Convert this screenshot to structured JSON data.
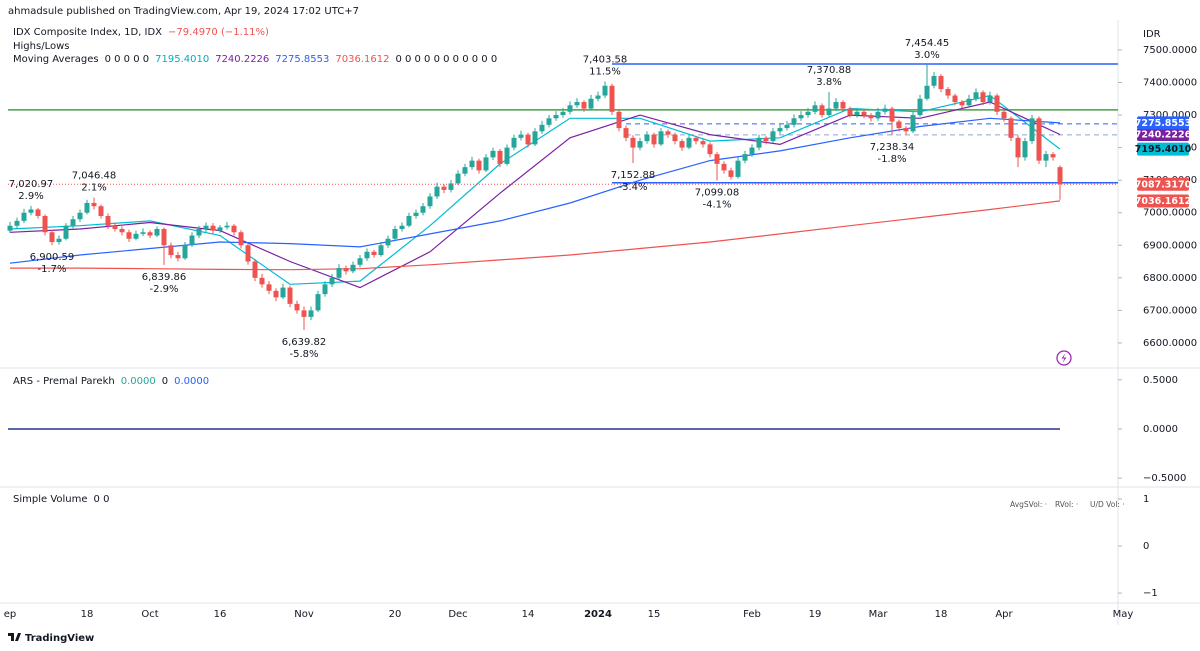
{
  "header": {
    "publisher": "ahmadsule published on TradingView.com, Apr 19, 2024 17:02 UTC+7",
    "symbol": "IDX Composite Index, 1D, IDX",
    "change": "−79.4970 (−1.11%)",
    "highs_lows": "Highs/Lows",
    "ma_title": "Moving Averages",
    "ma_zeros_before": "0 0 0 0 0",
    "ma_zeros_after": "0 0 0 0 0 0 0 0 0 0 0"
  },
  "chart_data": {
    "type": "candlestick",
    "currency": "IDR",
    "ylim": [
      6523,
      7592
    ],
    "yticks": [
      {
        "value": 7500,
        "label": "7500.0000"
      },
      {
        "value": 7400,
        "label": "7400.0000"
      },
      {
        "value": 7300,
        "label": "7300.0000"
      },
      {
        "value": 7200,
        "label": "7200.0000"
      },
      {
        "value": 7100,
        "label": "7100.0000"
      },
      {
        "value": 7000,
        "label": "7000.0000"
      },
      {
        "value": 6900,
        "label": "6900.0000"
      },
      {
        "value": 6800,
        "label": "6800.0000"
      },
      {
        "value": 6700,
        "label": "6700.0000"
      },
      {
        "value": 6600,
        "label": "6600.0000"
      }
    ],
    "up_color": "#26a69a",
    "down_color": "#ef5350",
    "candles": [
      [
        6945,
        6972,
        6938,
        6960
      ],
      [
        6960,
        6985,
        6950,
        6975
      ],
      [
        6975,
        7012,
        6968,
        7000
      ],
      [
        7000,
        7020.97,
        6992,
        7010
      ],
      [
        7010,
        7015,
        6982,
        6990
      ],
      [
        6990,
        6995,
        6930,
        6940
      ],
      [
        6940,
        6948,
        6900.59,
        6910
      ],
      [
        6910,
        6930,
        6902,
        6920
      ],
      [
        6920,
        6968,
        6915,
        6960
      ],
      [
        6960,
        6990,
        6952,
        6980
      ],
      [
        6980,
        7010,
        6972,
        7000
      ],
      [
        7000,
        7040,
        6995,
        7030
      ],
      [
        7030,
        7046.48,
        7010,
        7020
      ],
      [
        7020,
        7025,
        6982,
        6990
      ],
      [
        6990,
        6998,
        6950,
        6960
      ],
      [
        6960,
        6970,
        6942,
        6950
      ],
      [
        6950,
        6958,
        6930,
        6940
      ],
      [
        6940,
        6948,
        6910,
        6920
      ],
      [
        6920,
        6945,
        6915,
        6935
      ],
      [
        6935,
        6952,
        6928,
        6940
      ],
      [
        6940,
        6946,
        6922,
        6930
      ],
      [
        6930,
        6958,
        6925,
        6950
      ],
      [
        6950,
        6955,
        6839.86,
        6900
      ],
      [
        6900,
        6908,
        6860,
        6870
      ],
      [
        6870,
        6880,
        6850,
        6860
      ],
      [
        6860,
        6910,
        6855,
        6900
      ],
      [
        6900,
        6940,
        6895,
        6930
      ],
      [
        6930,
        6960,
        6922,
        6950
      ],
      [
        6950,
        6970,
        6940,
        6960
      ],
      [
        6960,
        6968,
        6935,
        6945
      ],
      [
        6945,
        6962,
        6938,
        6955
      ],
      [
        6955,
        6972,
        6948,
        6960
      ],
      [
        6960,
        6965,
        6930,
        6940
      ],
      [
        6940,
        6946,
        6890,
        6900
      ],
      [
        6900,
        6905,
        6840,
        6850
      ],
      [
        6850,
        6858,
        6790,
        6800
      ],
      [
        6800,
        6812,
        6770,
        6780
      ],
      [
        6780,
        6790,
        6750,
        6760
      ],
      [
        6760,
        6768,
        6728,
        6740
      ],
      [
        6740,
        6782,
        6735,
        6770
      ],
      [
        6770,
        6776,
        6710,
        6720
      ],
      [
        6720,
        6730,
        6690,
        6700
      ],
      [
        6700,
        6712,
        6639.82,
        6680
      ],
      [
        6680,
        6712,
        6670,
        6700
      ],
      [
        6700,
        6760,
        6695,
        6750
      ],
      [
        6750,
        6790,
        6742,
        6780
      ],
      [
        6780,
        6812,
        6772,
        6800
      ],
      [
        6800,
        6842,
        6795,
        6830
      ],
      [
        6830,
        6838,
        6810,
        6820
      ],
      [
        6820,
        6850,
        6814,
        6840
      ],
      [
        6840,
        6870,
        6832,
        6860
      ],
      [
        6860,
        6890,
        6852,
        6880
      ],
      [
        6880,
        6886,
        6862,
        6870
      ],
      [
        6870,
        6910,
        6865,
        6900
      ],
      [
        6900,
        6930,
        6892,
        6920
      ],
      [
        6920,
        6960,
        6915,
        6950
      ],
      [
        6950,
        6970,
        6942,
        6960
      ],
      [
        6960,
        7000,
        6955,
        6990
      ],
      [
        6990,
        7010,
        6982,
        7000
      ],
      [
        7000,
        7030,
        6992,
        7020
      ],
      [
        7020,
        7060,
        7012,
        7050
      ],
      [
        7050,
        7092,
        7042,
        7080
      ],
      [
        7080,
        7088,
        7060,
        7070
      ],
      [
        7070,
        7100,
        7062,
        7090
      ],
      [
        7090,
        7130,
        7085,
        7120
      ],
      [
        7120,
        7150,
        7112,
        7140
      ],
      [
        7140,
        7172,
        7132,
        7160
      ],
      [
        7160,
        7166,
        7120,
        7130
      ],
      [
        7130,
        7180,
        7125,
        7170
      ],
      [
        7170,
        7200,
        7162,
        7190
      ],
      [
        7190,
        7196,
        7140,
        7150
      ],
      [
        7150,
        7210,
        7145,
        7200
      ],
      [
        7200,
        7240,
        7192,
        7230
      ],
      [
        7230,
        7252,
        7222,
        7240
      ],
      [
        7240,
        7246,
        7200,
        7210
      ],
      [
        7210,
        7260,
        7205,
        7250
      ],
      [
        7250,
        7282,
        7242,
        7270
      ],
      [
        7270,
        7300,
        7262,
        7290
      ],
      [
        7290,
        7312,
        7282,
        7300
      ],
      [
        7300,
        7322,
        7292,
        7310
      ],
      [
        7310,
        7342,
        7302,
        7330
      ],
      [
        7330,
        7352,
        7322,
        7340
      ],
      [
        7340,
        7346,
        7310,
        7320
      ],
      [
        7320,
        7362,
        7315,
        7350
      ],
      [
        7350,
        7372,
        7342,
        7360
      ],
      [
        7360,
        7403.58,
        7352,
        7390
      ],
      [
        7390,
        7396,
        7300,
        7310
      ],
      [
        7310,
        7318,
        7250,
        7260
      ],
      [
        7260,
        7268,
        7220,
        7230
      ],
      [
        7230,
        7238,
        7152.88,
        7200
      ],
      [
        7200,
        7230,
        7192,
        7220
      ],
      [
        7220,
        7250,
        7212,
        7240
      ],
      [
        7240,
        7246,
        7200,
        7210
      ],
      [
        7210,
        7260,
        7205,
        7250
      ],
      [
        7250,
        7256,
        7230,
        7240
      ],
      [
        7240,
        7246,
        7210,
        7220
      ],
      [
        7220,
        7226,
        7190,
        7200
      ],
      [
        7200,
        7240,
        7195,
        7230
      ],
      [
        7230,
        7236,
        7210,
        7220
      ],
      [
        7220,
        7226,
        7200,
        7210
      ],
      [
        7210,
        7216,
        7170,
        7180
      ],
      [
        7180,
        7186,
        7099.08,
        7150
      ],
      [
        7150,
        7158,
        7120,
        7130
      ],
      [
        7130,
        7138,
        7102,
        7110
      ],
      [
        7110,
        7170,
        7105,
        7160
      ],
      [
        7160,
        7190,
        7152,
        7180
      ],
      [
        7180,
        7210,
        7172,
        7200
      ],
      [
        7200,
        7240,
        7192,
        7230
      ],
      [
        7230,
        7236,
        7210,
        7220
      ],
      [
        7220,
        7260,
        7214,
        7250
      ],
      [
        7250,
        7272,
        7242,
        7260
      ],
      [
        7260,
        7282,
        7252,
        7270
      ],
      [
        7270,
        7302,
        7262,
        7290
      ],
      [
        7290,
        7312,
        7282,
        7300
      ],
      [
        7300,
        7322,
        7292,
        7310
      ],
      [
        7310,
        7342,
        7302,
        7330
      ],
      [
        7330,
        7336,
        7292,
        7300
      ],
      [
        7300,
        7370.88,
        7295,
        7320
      ],
      [
        7320,
        7352,
        7312,
        7340
      ],
      [
        7340,
        7346,
        7310,
        7320
      ],
      [
        7320,
        7326,
        7292,
        7300
      ],
      [
        7300,
        7322,
        7292,
        7310
      ],
      [
        7310,
        7316,
        7290,
        7300
      ],
      [
        7300,
        7306,
        7280,
        7290
      ],
      [
        7290,
        7322,
        7282,
        7310
      ],
      [
        7310,
        7332,
        7302,
        7320
      ],
      [
        7320,
        7326,
        7238.34,
        7280
      ],
      [
        7280,
        7286,
        7250,
        7260
      ],
      [
        7260,
        7266,
        7240,
        7250
      ],
      [
        7250,
        7310,
        7245,
        7300
      ],
      [
        7300,
        7362,
        7295,
        7350
      ],
      [
        7350,
        7454.45,
        7345,
        7390
      ],
      [
        7390,
        7432,
        7382,
        7420
      ],
      [
        7420,
        7426,
        7370,
        7380
      ],
      [
        7380,
        7386,
        7350,
        7360
      ],
      [
        7360,
        7366,
        7330,
        7340
      ],
      [
        7340,
        7346,
        7320,
        7330
      ],
      [
        7330,
        7362,
        7325,
        7350
      ],
      [
        7350,
        7382,
        7342,
        7370
      ],
      [
        7370,
        7376,
        7330,
        7340
      ],
      [
        7340,
        7372,
        7332,
        7360
      ],
      [
        7360,
        7366,
        7300,
        7310
      ],
      [
        7310,
        7316,
        7280,
        7290
      ],
      [
        7290,
        7296,
        7220,
        7230
      ],
      [
        7230,
        7238,
        7140,
        7170
      ],
      [
        7170,
        7230,
        7160,
        7220
      ],
      [
        7220,
        7300,
        7212,
        7290
      ],
      [
        7290,
        7296,
        7150,
        7160
      ],
      [
        7160,
        7190,
        7140,
        7180
      ],
      [
        7180,
        7186,
        7160,
        7170
      ],
      [
        7140,
        7146,
        7040,
        7087.317
      ]
    ],
    "last_label": "7087.3170",
    "price_line": true,
    "moving_averages": [
      {
        "color": "#00bcd4",
        "tag_text": "#131722",
        "x": [
          0,
          10,
          20,
          30,
          40,
          50,
          60,
          70,
          80,
          90,
          100,
          110,
          120,
          130,
          140,
          150
        ],
        "values": [
          6950,
          6960,
          6975,
          6930,
          6780,
          6790,
          6960,
          7150,
          7290,
          7290,
          7220,
          7230,
          7320,
          7310,
          7360,
          7195.401
        ],
        "last_label": "7195.4010"
      },
      {
        "color": "#7b1fa2",
        "tag_text": "#ffffff",
        "x": [
          0,
          10,
          20,
          30,
          40,
          50,
          60,
          70,
          80,
          90,
          100,
          110,
          120,
          130,
          140,
          150
        ],
        "values": [
          6940,
          6950,
          6970,
          6945,
          6850,
          6770,
          6880,
          7060,
          7230,
          7300,
          7240,
          7210,
          7300,
          7290,
          7340,
          7240.2226
        ],
        "last_label": "7240.2226"
      },
      {
        "color": "#2962ff",
        "tag_text": "#ffffff",
        "x": [
          0,
          10,
          20,
          30,
          40,
          50,
          60,
          70,
          80,
          90,
          100,
          110,
          120,
          130,
          140,
          150
        ],
        "values": [
          6845,
          6870,
          6890,
          6910,
          6905,
          6895,
          6935,
          6975,
          7030,
          7100,
          7160,
          7190,
          7230,
          7265,
          7290,
          7275.8553
        ],
        "last_label": "7275.8553"
      },
      {
        "color": "#ef5350",
        "tag_text": "#ffffff",
        "x": [
          0,
          10,
          20,
          30,
          40,
          50,
          60,
          70,
          80,
          90,
          100,
          110,
          120,
          130,
          140,
          150
        ],
        "values": [
          6830,
          6830,
          6828,
          6826,
          6825,
          6828,
          6840,
          6855,
          6870,
          6890,
          6910,
          6935,
          6960,
          6985,
          7010,
          7036.1612
        ],
        "last_label": "7036.1612"
      }
    ],
    "hlines": [
      {
        "value": 7316,
        "color": "#43a047",
        "from": 0,
        "dash": false
      },
      {
        "value": 7457,
        "color": "#2962ff",
        "from": 86,
        "dash": false
      },
      {
        "value": 7092,
        "color": "#2962ff",
        "from": 86,
        "dash": false
      },
      {
        "value": 7273,
        "color": "#2962ff",
        "from": 88,
        "dash": true
      },
      {
        "value": 7239,
        "color": "#90a4d4",
        "from": 88,
        "dash": true
      }
    ],
    "annotations": [
      {
        "index": 3,
        "kind": "high",
        "price": "7,020.97",
        "pct": "2.9%"
      },
      {
        "index": 6,
        "kind": "low",
        "price": "6,900.59",
        "pct": "-1.7%"
      },
      {
        "index": 12,
        "kind": "high",
        "price": "7,046.48",
        "pct": "2.1%"
      },
      {
        "index": 22,
        "kind": "low",
        "price": "6,839.86",
        "pct": "-2.9%"
      },
      {
        "index": 42,
        "kind": "low",
        "price": "6,639.82",
        "pct": "-5.8%"
      },
      {
        "index": 85,
        "kind": "high",
        "price": "7,403.58",
        "pct": "11.5%"
      },
      {
        "index": 89,
        "kind": "low",
        "price": "7,152.88",
        "pct": "-3.4%"
      },
      {
        "index": 101,
        "kind": "low",
        "price": "7,099.08",
        "pct": "-4.1%"
      },
      {
        "index": 117,
        "kind": "high",
        "price": "7,370.88",
        "pct": "3.8%"
      },
      {
        "index": 126,
        "kind": "low",
        "price": "7,238.34",
        "pct": "-1.8%"
      },
      {
        "index": 131,
        "kind": "high",
        "price": "7,454.45",
        "pct": "3.0%"
      }
    ],
    "xlabels": [
      {
        "index": 0,
        "label": "ep"
      },
      {
        "index": 11,
        "label": "18"
      },
      {
        "index": 20,
        "label": "Oct"
      },
      {
        "index": 30,
        "label": "16"
      },
      {
        "index": 42,
        "label": "Nov"
      },
      {
        "index": 55,
        "label": "20"
      },
      {
        "index": 64,
        "label": "Dec"
      },
      {
        "index": 74,
        "label": "14"
      },
      {
        "index": 84,
        "label": "2024",
        "bold": true
      },
      {
        "index": 92,
        "label": "15"
      },
      {
        "index": 106,
        "label": "Feb"
      },
      {
        "index": 115,
        "label": "19"
      },
      {
        "index": 124,
        "label": "Mar"
      },
      {
        "index": 133,
        "label": "18"
      },
      {
        "index": 142,
        "label": "Apr"
      },
      {
        "index": 159,
        "label": "May"
      }
    ]
  },
  "ars": {
    "title": "ARS - Premal Parekh",
    "v1": "0.0000",
    "n": "0",
    "v2": "0.0000",
    "ylim": [
      -0.59,
      0.62
    ],
    "yticks": [
      {
        "value": 0.5,
        "label": "0.5000"
      },
      {
        "value": 0,
        "label": "0.0000"
      },
      {
        "value": -0.5,
        "label": "−0.5000"
      }
    ],
    "line": {
      "value": 0,
      "color": "#283593"
    }
  },
  "volume": {
    "title": "Simple Volume",
    "zeros": "0 0",
    "stats": [
      "AvgSVol: ·",
      "RVol: ·",
      "U/D Vol: ·"
    ],
    "ylim": [
      -1.21,
      1.255
    ],
    "yticks": [
      1,
      0,
      {
        "value": -1,
        "label": "−1"
      }
    ]
  },
  "footer": {
    "brand": "TradingView"
  }
}
